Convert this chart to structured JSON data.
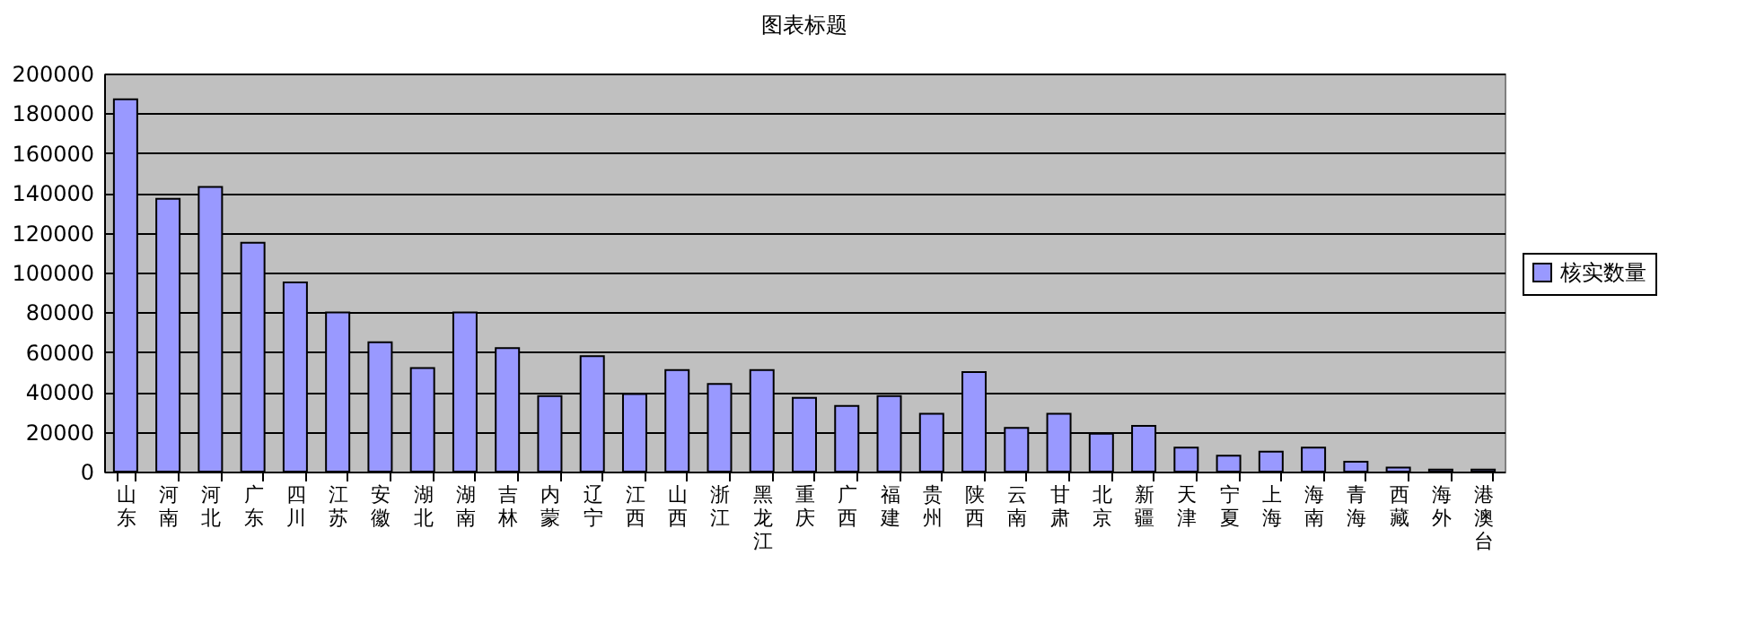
{
  "chart_data": {
    "type": "bar",
    "title": "图表标题",
    "categories": [
      "山东",
      "河南",
      "河北",
      "广东",
      "四川",
      "江苏",
      "安徽",
      "湖北",
      "湖南",
      "吉林",
      "内蒙",
      "辽宁",
      "江西",
      "山西",
      "浙江",
      "黑龙江",
      "重庆",
      "广西",
      "福建",
      "贵州",
      "陕西",
      "云南",
      "甘肃",
      "北京",
      "新疆",
      "天津",
      "宁夏",
      "上海",
      "海南",
      "青海",
      "西藏",
      "海外",
      "港澳台"
    ],
    "series": [
      {
        "name": "核实数量",
        "color": "#9999ff",
        "values": [
          187000,
          137000,
          143000,
          115000,
          95000,
          80000,
          65000,
          52000,
          80000,
          62000,
          38000,
          58000,
          39000,
          51000,
          44000,
          51000,
          37000,
          33000,
          38000,
          29000,
          50000,
          22000,
          29000,
          19000,
          23000,
          12000,
          8000,
          10000,
          12000,
          5000,
          2000,
          1000,
          1000
        ]
      }
    ],
    "ylim": [
      0,
      200000
    ],
    "yticks": [
      0,
      20000,
      40000,
      60000,
      80000,
      100000,
      120000,
      140000,
      160000,
      180000,
      200000
    ],
    "grid": "y",
    "legend": "right"
  }
}
